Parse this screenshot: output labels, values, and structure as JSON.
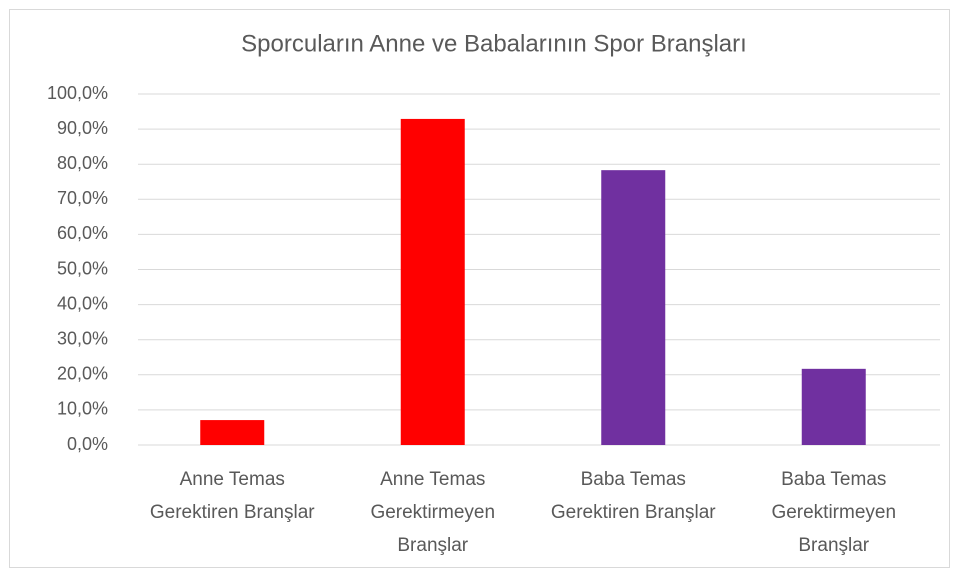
{
  "chart_data": {
    "type": "bar",
    "title": "Sporcuların Anne ve Babalarının Spor Branşları",
    "categories": [
      "Anne Temas Gerektiren Branşlar",
      "Anne Temas Gerektirmeyen Branşlar",
      "Baba Temas Gerektiren Branşlar",
      "Baba Temas Gerektirmeyen Branşlar"
    ],
    "values": [
      7.1,
      92.9,
      78.3,
      21.7
    ],
    "colors": [
      "#ff0000",
      "#ff0000",
      "#7030a0",
      "#7030a0"
    ],
    "ylim": [
      0,
      100
    ],
    "yticks": [
      {
        "value": 0,
        "label": "0,0%"
      },
      {
        "value": 10,
        "label": "10,0%"
      },
      {
        "value": 20,
        "label": "20,0%"
      },
      {
        "value": 30,
        "label": "30,0%"
      },
      {
        "value": 40,
        "label": "40,0%"
      },
      {
        "value": 50,
        "label": "50,0%"
      },
      {
        "value": 60,
        "label": "60,0%"
      },
      {
        "value": 70,
        "label": "70,0%"
      },
      {
        "value": 80,
        "label": "80,0%"
      },
      {
        "value": 90,
        "label": "90,0%"
      },
      {
        "value": 100,
        "label": "100,0%"
      }
    ],
    "grid": true
  }
}
